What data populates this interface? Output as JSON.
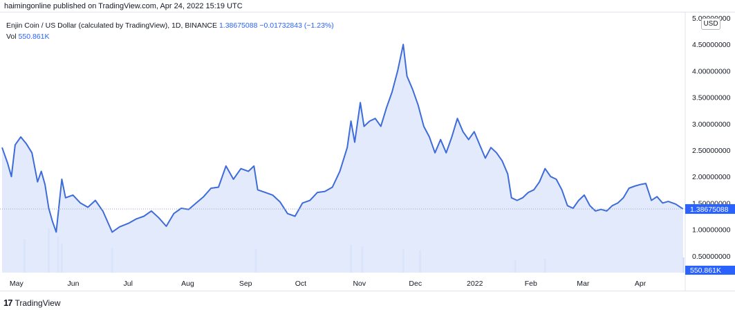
{
  "header": {
    "published": "haimingonline published on TradingView.com, Apr 24, 2022 15:19 UTC"
  },
  "legend": {
    "symbol": "Enjin Coin / US Dollar (calculated by TradingView), 1D, BINANCE",
    "last": "1.38675088",
    "change": "−0.01732843 (−1.23%)",
    "vol_label": "Vol",
    "vol_value": "550.861K"
  },
  "currency_label": "USD",
  "footer": {
    "logo": "17",
    "brand": "TradingView"
  },
  "colors": {
    "line": "#3d6bd9",
    "fill": "#dde6fb",
    "volume": "#c9d6f5",
    "badge": "#2962ff"
  },
  "chart_data": {
    "type": "area",
    "series": [
      {
        "values": [
          {
            "date": "2021-04-24",
            "price": 2.55
          },
          {
            "date": "2021-04-27",
            "price": 2.25
          },
          {
            "date": "2021-04-29",
            "price": 2.0
          },
          {
            "date": "2021-05-01",
            "price": 2.6
          },
          {
            "date": "2021-05-04",
            "price": 2.75
          },
          {
            "date": "2021-05-07",
            "price": 2.62
          },
          {
            "date": "2021-05-10",
            "price": 2.45
          },
          {
            "date": "2021-05-13",
            "price": 1.9
          },
          {
            "date": "2021-05-15",
            "price": 2.1
          },
          {
            "date": "2021-05-17",
            "price": 1.85
          },
          {
            "date": "2021-05-19",
            "price": 1.4
          },
          {
            "date": "2021-05-21",
            "price": 1.15
          },
          {
            "date": "2021-05-23",
            "price": 0.95
          },
          {
            "date": "2021-05-26",
            "price": 1.95
          },
          {
            "date": "2021-05-28",
            "price": 1.6
          },
          {
            "date": "2021-06-01",
            "price": 1.65
          },
          {
            "date": "2021-06-05",
            "price": 1.5
          },
          {
            "date": "2021-06-09",
            "price": 1.42
          },
          {
            "date": "2021-06-13",
            "price": 1.55
          },
          {
            "date": "2021-06-17",
            "price": 1.35
          },
          {
            "date": "2021-06-22",
            "price": 0.95
          },
          {
            "date": "2021-06-26",
            "price": 1.05
          },
          {
            "date": "2021-07-01",
            "price": 1.12
          },
          {
            "date": "2021-07-05",
            "price": 1.2
          },
          {
            "date": "2021-07-09",
            "price": 1.25
          },
          {
            "date": "2021-07-13",
            "price": 1.35
          },
          {
            "date": "2021-07-17",
            "price": 1.22
          },
          {
            "date": "2021-07-21",
            "price": 1.06
          },
          {
            "date": "2021-07-25",
            "price": 1.3
          },
          {
            "date": "2021-07-29",
            "price": 1.4
          },
          {
            "date": "2021-08-02",
            "price": 1.38
          },
          {
            "date": "2021-08-06",
            "price": 1.5
          },
          {
            "date": "2021-08-10",
            "price": 1.62
          },
          {
            "date": "2021-08-14",
            "price": 1.78
          },
          {
            "date": "2021-08-18",
            "price": 1.8
          },
          {
            "date": "2021-08-22",
            "price": 2.2
          },
          {
            "date": "2021-08-26",
            "price": 1.95
          },
          {
            "date": "2021-08-30",
            "price": 2.15
          },
          {
            "date": "2021-09-03",
            "price": 2.1
          },
          {
            "date": "2021-09-06",
            "price": 2.2
          },
          {
            "date": "2021-09-08",
            "price": 1.75
          },
          {
            "date": "2021-09-12",
            "price": 1.7
          },
          {
            "date": "2021-09-16",
            "price": 1.65
          },
          {
            "date": "2021-09-20",
            "price": 1.52
          },
          {
            "date": "2021-09-24",
            "price": 1.3
          },
          {
            "date": "2021-09-28",
            "price": 1.25
          },
          {
            "date": "2021-10-02",
            "price": 1.5
          },
          {
            "date": "2021-10-06",
            "price": 1.55
          },
          {
            "date": "2021-10-10",
            "price": 1.7
          },
          {
            "date": "2021-10-14",
            "price": 1.72
          },
          {
            "date": "2021-10-18",
            "price": 1.8
          },
          {
            "date": "2021-10-22",
            "price": 2.1
          },
          {
            "date": "2021-10-26",
            "price": 2.55
          },
          {
            "date": "2021-10-28",
            "price": 3.05
          },
          {
            "date": "2021-10-30",
            "price": 2.65
          },
          {
            "date": "2021-11-02",
            "price": 3.4
          },
          {
            "date": "2021-11-04",
            "price": 2.95
          },
          {
            "date": "2021-11-07",
            "price": 3.05
          },
          {
            "date": "2021-11-10",
            "price": 3.1
          },
          {
            "date": "2021-11-13",
            "price": 2.95
          },
          {
            "date": "2021-11-16",
            "price": 3.3
          },
          {
            "date": "2021-11-19",
            "price": 3.6
          },
          {
            "date": "2021-11-22",
            "price": 4.0
          },
          {
            "date": "2021-11-25",
            "price": 4.5
          },
          {
            "date": "2021-11-27",
            "price": 3.9
          },
          {
            "date": "2021-11-30",
            "price": 3.65
          },
          {
            "date": "2021-12-03",
            "price": 3.35
          },
          {
            "date": "2021-12-06",
            "price": 2.95
          },
          {
            "date": "2021-12-09",
            "price": 2.75
          },
          {
            "date": "2021-12-12",
            "price": 2.45
          },
          {
            "date": "2021-12-15",
            "price": 2.7
          },
          {
            "date": "2021-12-18",
            "price": 2.45
          },
          {
            "date": "2021-12-21",
            "price": 2.75
          },
          {
            "date": "2021-12-24",
            "price": 3.1
          },
          {
            "date": "2021-12-27",
            "price": 2.85
          },
          {
            "date": "2021-12-30",
            "price": 2.7
          },
          {
            "date": "2022-01-02",
            "price": 2.85
          },
          {
            "date": "2022-01-05",
            "price": 2.6
          },
          {
            "date": "2022-01-08",
            "price": 2.35
          },
          {
            "date": "2022-01-11",
            "price": 2.55
          },
          {
            "date": "2022-01-14",
            "price": 2.45
          },
          {
            "date": "2022-01-17",
            "price": 2.3
          },
          {
            "date": "2022-01-20",
            "price": 2.05
          },
          {
            "date": "2022-01-22",
            "price": 1.6
          },
          {
            "date": "2022-01-25",
            "price": 1.55
          },
          {
            "date": "2022-01-28",
            "price": 1.6
          },
          {
            "date": "2022-01-31",
            "price": 1.7
          },
          {
            "date": "2022-02-03",
            "price": 1.75
          },
          {
            "date": "2022-02-06",
            "price": 1.9
          },
          {
            "date": "2022-02-09",
            "price": 2.15
          },
          {
            "date": "2022-02-12",
            "price": 2.0
          },
          {
            "date": "2022-02-15",
            "price": 1.95
          },
          {
            "date": "2022-02-18",
            "price": 1.75
          },
          {
            "date": "2022-02-21",
            "price": 1.45
          },
          {
            "date": "2022-02-24",
            "price": 1.4
          },
          {
            "date": "2022-02-27",
            "price": 1.55
          },
          {
            "date": "2022-03-02",
            "price": 1.65
          },
          {
            "date": "2022-03-05",
            "price": 1.45
          },
          {
            "date": "2022-03-08",
            "price": 1.35
          },
          {
            "date": "2022-03-11",
            "price": 1.38
          },
          {
            "date": "2022-03-14",
            "price": 1.35
          },
          {
            "date": "2022-03-17",
            "price": 1.45
          },
          {
            "date": "2022-03-20",
            "price": 1.5
          },
          {
            "date": "2022-03-23",
            "price": 1.6
          },
          {
            "date": "2022-03-26",
            "price": 1.78
          },
          {
            "date": "2022-03-29",
            "price": 1.82
          },
          {
            "date": "2022-04-01",
            "price": 1.85
          },
          {
            "date": "2022-04-04",
            "price": 1.87
          },
          {
            "date": "2022-04-07",
            "price": 1.55
          },
          {
            "date": "2022-04-10",
            "price": 1.62
          },
          {
            "date": "2022-04-13",
            "price": 1.5
          },
          {
            "date": "2022-04-16",
            "price": 1.53
          },
          {
            "date": "2022-04-20",
            "price": 1.48
          },
          {
            "date": "2022-04-24",
            "price": 1.38675088
          }
        ]
      }
    ],
    "volume": [
      {
        "date": "2021-05-06",
        "value": 1.2
      },
      {
        "date": "2021-05-19",
        "value": 1.6
      },
      {
        "date": "2021-05-24",
        "value": 1.3
      },
      {
        "date": "2021-05-26",
        "value": 1.05
      },
      {
        "date": "2021-06-22",
        "value": 0.9
      },
      {
        "date": "2021-09-07",
        "value": 0.85
      },
      {
        "date": "2021-10-28",
        "value": 1.0
      },
      {
        "date": "2021-11-03",
        "value": 0.95
      },
      {
        "date": "2021-11-25",
        "value": 0.85
      },
      {
        "date": "2021-12-04",
        "value": 0.8
      },
      {
        "date": "2022-01-24",
        "value": 0.45
      },
      {
        "date": "2022-02-09",
        "value": 0.5
      },
      {
        "date": "2022-04-24",
        "value": 0.55
      }
    ],
    "x_ticks": [
      "May",
      "Jun",
      "Jul",
      "Aug",
      "Sep",
      "Oct",
      "Nov",
      "Dec",
      "2022",
      "Feb",
      "Mar",
      "Apr"
    ],
    "y_ticks": [
      "5.00000000",
      "4.50000000",
      "4.00000000",
      "3.50000000",
      "3.00000000",
      "2.50000000",
      "2.00000000",
      "1.50000000",
      "1.00000000",
      "0.50000000"
    ],
    "ylim": [
      0,
      5.0
    ],
    "grid": false,
    "current_price_label": "1.38675088",
    "volume_label": "550.861K"
  }
}
